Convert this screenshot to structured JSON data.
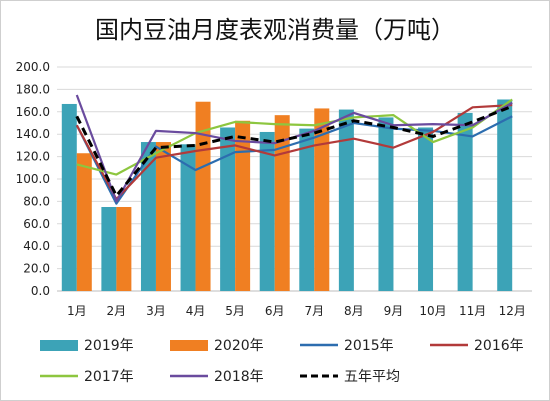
{
  "chart_data": {
    "type": "bar",
    "title": "国内豆油月度表观消费量（万吨）",
    "categories": [
      "1月",
      "2月",
      "3月",
      "4月",
      "5月",
      "6月",
      "7月",
      "8月",
      "9月",
      "10月",
      "11月",
      "12月"
    ],
    "ylim": [
      0,
      200
    ],
    "yticks": [
      "0.0",
      "20.0",
      "40.0",
      "60.0",
      "80.0",
      "100.0",
      "120.0",
      "140.0",
      "160.0",
      "180.0",
      "200.0"
    ],
    "grid": true,
    "legend_position": "bottom",
    "bar_series": [
      {
        "name": "2019年",
        "color": "#3CA3B7",
        "values": [
          167,
          75,
          133,
          131,
          146,
          142,
          145,
          162,
          155,
          146,
          159,
          171
        ]
      },
      {
        "name": "2020年",
        "color": "#F07F22",
        "values": [
          123,
          75,
          133,
          169,
          152,
          157,
          163,
          null,
          null,
          null,
          null,
          null
        ]
      }
    ],
    "line_series": [
      {
        "name": "2015年",
        "color": "#2C6DAF",
        "dash": false,
        "values": [
          148,
          78,
          129,
          108,
          124,
          126,
          137,
          150,
          145,
          143,
          138,
          156
        ]
      },
      {
        "name": "2016年",
        "color": "#B23A3A",
        "dash": false,
        "values": [
          148,
          82,
          119,
          125,
          130,
          121,
          130,
          136,
          128,
          142,
          164,
          166
        ]
      },
      {
        "name": "2017年",
        "color": "#8DC63F",
        "dash": false,
        "values": [
          113,
          104,
          123,
          141,
          151,
          149,
          148,
          155,
          157,
          133,
          146,
          171
        ]
      },
      {
        "name": "2018年",
        "color": "#6A4B9E",
        "dash": false,
        "values": [
          175,
          80,
          143,
          141,
          134,
          132,
          143,
          159,
          148,
          149,
          148,
          168
        ]
      },
      {
        "name": "五年平均",
        "color": "#000000",
        "dash": true,
        "values": [
          156,
          85,
          128,
          130,
          138,
          133,
          141,
          152,
          146,
          138,
          151,
          165
        ]
      }
    ]
  }
}
